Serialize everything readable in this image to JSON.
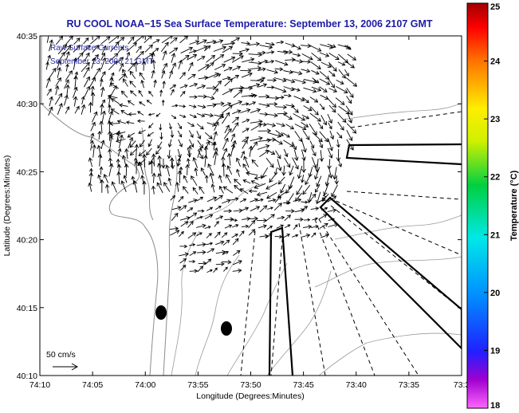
{
  "title": "RU COOL  NOAA−15  Sea Surface Temperature:  September 13, 2006 2107 GMT",
  "annotation": {
    "line1": "Raw Surface Currents",
    "line2": "September 13, 2006 21 GMT"
  },
  "scale_label": "50 cm/s",
  "map_data": {
    "type": "map",
    "xlabel": "Longitude (Degrees:Minutes)",
    "ylabel": "Latitude (Degrees:Minutes)",
    "xticks": [
      "74:10",
      "74:05",
      "74:00",
      "73:55",
      "73:50",
      "73:45",
      "73:40",
      "73:35",
      "73:3"
    ],
    "yticks": [
      "40:10",
      "40:15",
      "40:20",
      "40:25",
      "40:30",
      "40:35"
    ],
    "colorbar": {
      "label": "Temperature (°C)",
      "range": [
        18,
        25
      ],
      "ticks": [
        "18",
        "19",
        "20",
        "21",
        "22",
        "23",
        "24",
        "25"
      ]
    }
  },
  "colors": {
    "title": "#1c1ca6",
    "annotation": "#2a2aa6",
    "contour": "#8c8c8c",
    "vectors": "#000000"
  }
}
